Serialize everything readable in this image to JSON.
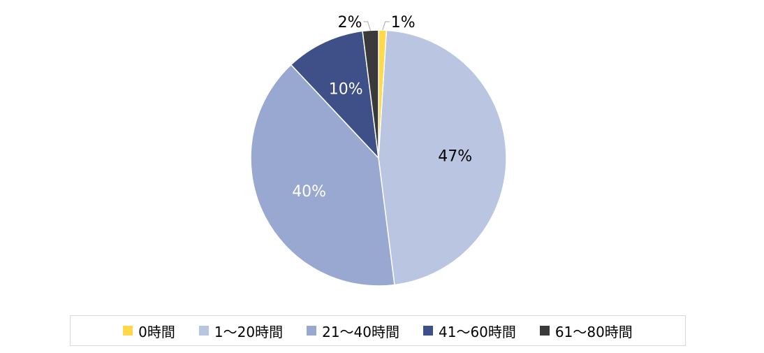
{
  "chart_data": {
    "type": "pie",
    "title": "",
    "categories": [
      "0時間",
      "1～20時間",
      "21～40時間",
      "41～60時間",
      "61～80時間"
    ],
    "values": [
      1,
      47,
      40,
      10,
      2
    ],
    "labels": [
      "1%",
      "47%",
      "40%",
      "10%",
      "2%"
    ],
    "colors": [
      "#ffd94a",
      "#b9c5e1",
      "#98a8d1",
      "#3f4f88",
      "#3a3a3a"
    ],
    "label_colors": [
      "#000000",
      "#000000",
      "#ffffff",
      "#ffffff",
      "#000000"
    ],
    "start_angle_deg": 0,
    "direction": "clockwise",
    "legend_position": "bottom"
  }
}
